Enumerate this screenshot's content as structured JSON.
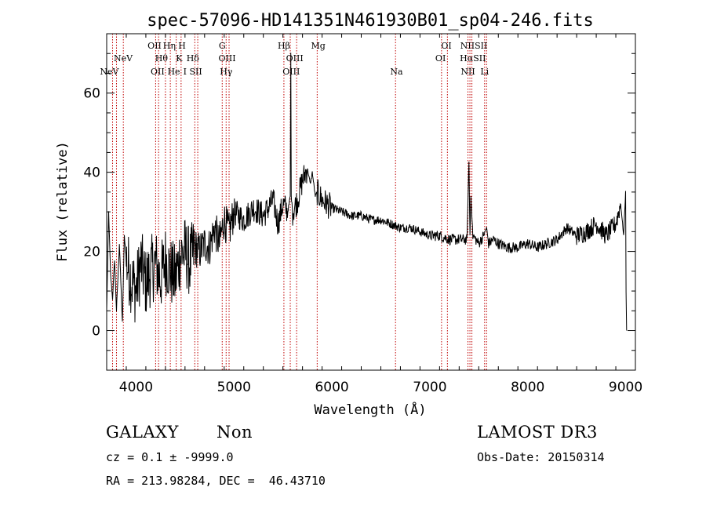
{
  "chart_data": {
    "type": "line",
    "title": "spec-57096-HD141351N461930B01_sp04-246.fits",
    "xlabel": "Wavelength (Å)",
    "ylabel": "Flux (relative)",
    "xlim": [
      3700,
      9100
    ],
    "ylim": [
      -10,
      75
    ],
    "xticks": [
      4000,
      5000,
      6000,
      7000,
      8000,
      9000
    ],
    "yticks": [
      0,
      20,
      40,
      60
    ],
    "series": [
      {
        "name": "flux",
        "x": [
          3700,
          3720,
          3740,
          3760,
          3780,
          3800,
          3830,
          3860,
          3880,
          3900,
          3950,
          4000,
          4050,
          4100,
          4150,
          4200,
          4250,
          4300,
          4350,
          4400,
          4450,
          4500,
          4550,
          4600,
          4650,
          4700,
          4750,
          4800,
          4850,
          4900,
          4950,
          5000,
          5100,
          5200,
          5300,
          5400,
          5450,
          5500,
          5550,
          5575,
          5580,
          5585,
          5600,
          5650,
          5700,
          5750,
          5780,
          5800,
          5830,
          5850,
          5900,
          6000,
          6100,
          6200,
          6300,
          6400,
          6500,
          6600,
          6700,
          6800,
          6900,
          7000,
          7100,
          7200,
          7300,
          7380,
          7400,
          7410,
          7420,
          7440,
          7500,
          7550,
          7580,
          7600,
          7650,
          7700,
          7800,
          7900,
          8000,
          8100,
          8200,
          8300,
          8400,
          8500,
          8600,
          8700,
          8800,
          8900,
          8950,
          8980,
          9000,
          9005,
          9010
        ],
        "values": [
          5,
          30,
          14,
          8,
          18,
          5,
          22,
          2,
          24,
          18,
          13,
          10,
          17,
          12,
          15,
          17,
          13,
          18,
          15,
          13,
          19,
          20,
          17,
          21,
          20,
          22,
          21,
          26,
          22,
          28,
          25,
          30,
          28,
          31,
          29,
          33,
          27,
          32,
          30,
          34,
          70,
          34,
          30,
          33,
          38,
          41,
          37,
          40,
          34,
          35,
          33,
          31,
          30,
          29,
          29,
          28,
          28,
          27,
          26,
          26,
          25,
          24,
          24,
          23,
          23,
          23,
          43,
          24,
          34,
          24,
          22,
          24,
          26,
          22,
          23,
          22,
          21,
          21,
          22,
          21,
          22,
          23,
          26,
          24,
          25,
          27,
          24,
          27,
          32,
          24,
          35,
          10,
          0
        ]
      }
    ],
    "emission_lines": [
      {
        "label": "NeV",
        "wavelength": 3727,
        "row": 2
      },
      {
        "label": "NeV",
        "wavelength": 3869,
        "row": 1
      },
      {
        "label": "OII",
        "wavelength": 4189,
        "row": 0
      },
      {
        "label": "OII",
        "wavelength": 4220,
        "row": 2
      },
      {
        "label": "Hθ",
        "wavelength": 4260,
        "row": 1
      },
      {
        "label": "Hη",
        "wavelength": 4340,
        "row": 0
      },
      {
        "label": "He",
        "wavelength": 4385,
        "row": 2
      },
      {
        "label": "K",
        "wavelength": 4440,
        "row": 1
      },
      {
        "label": "H",
        "wavelength": 4470,
        "row": 0
      },
      {
        "label": "I",
        "wavelength": 4500,
        "row": 2
      },
      {
        "label": "Hδ",
        "wavelength": 4580,
        "row": 1
      },
      {
        "label": "SII",
        "wavelength": 4610,
        "row": 2
      },
      {
        "label": "G",
        "wavelength": 4880,
        "row": 0
      },
      {
        "label": "OIII",
        "wavelength": 4930,
        "row": 1
      },
      {
        "label": "Hγ",
        "wavelength": 4920,
        "row": 2
      },
      {
        "label": "Hβ",
        "wavelength": 5510,
        "row": 0
      },
      {
        "label": "OIII",
        "wavelength": 5620,
        "row": 1
      },
      {
        "label": "OIII",
        "wavelength": 5585,
        "row": 2
      },
      {
        "label": "Mg",
        "wavelength": 5860,
        "row": 0
      },
      {
        "label": "Na",
        "wavelength": 6660,
        "row": 2
      },
      {
        "label": "OI",
        "wavelength": 7170,
        "row": 0
      },
      {
        "label": "OI",
        "wavelength": 7110,
        "row": 1
      },
      {
        "label": "NIISII",
        "wavelength": 7450,
        "row": 0
      },
      {
        "label": "HαSII",
        "wavelength": 7440,
        "row": 1
      },
      {
        "label": "NII",
        "wavelength": 7390,
        "row": 2
      },
      {
        "label": "Li",
        "wavelength": 7560,
        "row": 2
      }
    ],
    "line_positions": [
      3760,
      3800,
      3870,
      4200,
      4230,
      4300,
      4350,
      4410,
      4460,
      4600,
      4630,
      4880,
      4920,
      4950,
      5510,
      5575,
      5640,
      5850,
      6650,
      7120,
      7180,
      7390,
      7410,
      7430,
      7560,
      7580
    ]
  },
  "info": {
    "class": "GALAXY",
    "subclass": "Non",
    "survey": "LAMOST DR3",
    "cz": "cz = 0.1 ± -9999.0",
    "obs_date": "Obs-Date: 20150314",
    "radec": "RA = 213.98284, DEC =  46.43710"
  },
  "colors": {
    "line_marker": "#c00000",
    "spectrum": "#000000"
  }
}
